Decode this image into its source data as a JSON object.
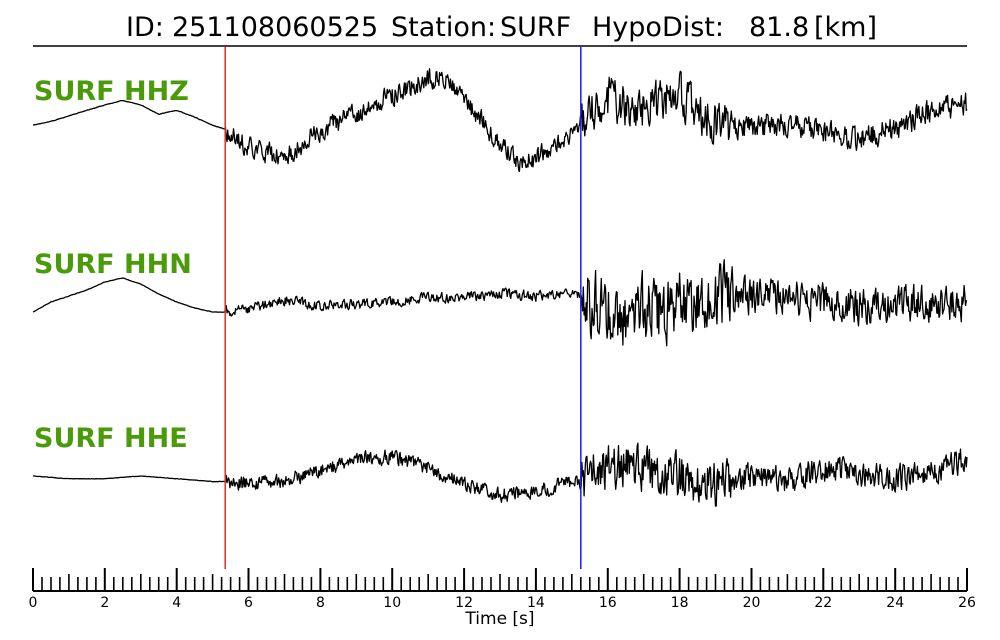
{
  "header": {
    "id_label": "ID:",
    "id_value": "251108060525",
    "station_label": "Station:",
    "station_value": "SURF",
    "dist_label": "HypoDist:",
    "dist_value": "81.8",
    "dist_unit": "[km]"
  },
  "colors": {
    "trace": "#000000",
    "channel_label": "#4a9a0a",
    "p_pick": "#e0301e",
    "s_pick": "#1a1aff"
  },
  "chart_data": {
    "type": "line",
    "title": "ID: 251108060525   Station: SURF   HypoDist:    81.8 [km]",
    "xlabel": "Time [s]",
    "ylabel": "",
    "xlim": [
      0,
      26
    ],
    "xticks": [
      "0",
      "2",
      "4",
      "6",
      "8",
      "10",
      "12",
      "14",
      "16",
      "18",
      "20",
      "22",
      "24",
      "26"
    ],
    "minor_tick_step": 0.25,
    "grid": false,
    "picks": [
      {
        "phase": "P",
        "time": 5.35,
        "color": "#e0301e"
      },
      {
        "phase": "S",
        "time": 15.25,
        "color": "#1a1aff"
      }
    ],
    "series": [
      {
        "name": "SURF HHZ",
        "x": [
          0,
          0.5,
          1,
          1.5,
          2,
          2.5,
          3,
          3.5,
          4,
          4.5,
          5,
          5.35,
          6,
          7,
          8,
          9,
          10,
          11,
          11.5,
          12,
          13,
          13.5,
          14,
          15,
          15.25,
          16,
          17,
          18,
          19,
          20,
          21,
          22,
          23,
          24,
          25,
          26
        ],
        "y": [
          0.05,
          0.12,
          0.22,
          0.32,
          0.42,
          0.5,
          0.42,
          0.25,
          0.32,
          0.2,
          0.05,
          -0.02,
          -0.35,
          -0.55,
          -0.05,
          0.25,
          0.6,
          0.9,
          0.95,
          0.55,
          -0.3,
          -0.6,
          -0.55,
          -0.1,
          0.1,
          0.5,
          0.35,
          0.6,
          0.1,
          0.0,
          0.1,
          -0.1,
          -0.2,
          0.0,
          0.3,
          0.45
        ]
      },
      {
        "name": "SURF HHN",
        "x": [
          0,
          0.5,
          1,
          1.5,
          2,
          2.5,
          3,
          3.5,
          4,
          4.5,
          5,
          5.35,
          6,
          7,
          8,
          9,
          10,
          11,
          12,
          13,
          14,
          15,
          15.25,
          16,
          16.5,
          17,
          17.5,
          18,
          19,
          20,
          21,
          22,
          23,
          24,
          25,
          26
        ],
        "y": [
          -0.3,
          -0.05,
          0.1,
          0.25,
          0.45,
          0.55,
          0.4,
          0.15,
          -0.05,
          -0.2,
          -0.3,
          -0.3,
          -0.25,
          0.0,
          -0.15,
          -0.1,
          -0.05,
          0.05,
          0.05,
          0.15,
          0.1,
          0.15,
          0.1,
          -0.25,
          -0.4,
          -0.2,
          -0.3,
          -0.1,
          0.05,
          0.05,
          0.05,
          -0.05,
          -0.15,
          -0.15,
          -0.05,
          -0.05
        ]
      },
      {
        "name": "SURF HHE",
        "x": [
          0,
          1,
          2,
          3,
          4,
          5,
          5.35,
          6,
          7,
          8,
          9,
          10,
          11,
          12,
          13,
          14,
          15,
          15.25,
          16,
          17,
          18,
          19,
          20,
          21,
          22,
          23,
          24,
          25,
          26
        ],
        "y": [
          0.0,
          -0.05,
          -0.05,
          0.0,
          -0.05,
          -0.1,
          -0.1,
          -0.15,
          -0.1,
          0.1,
          0.3,
          0.35,
          0.15,
          -0.15,
          -0.35,
          -0.3,
          -0.1,
          -0.1,
          0.2,
          0.1,
          -0.05,
          -0.15,
          0.0,
          -0.1,
          0.15,
          0.05,
          -0.05,
          0.1,
          0.3
        ]
      }
    ]
  }
}
